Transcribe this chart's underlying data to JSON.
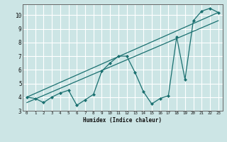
{
  "title": "",
  "xlabel": "Humidex (Indice chaleur)",
  "ylabel": "",
  "bg_color": "#cce5e5",
  "grid_color": "#ffffff",
  "line_color": "#1a7070",
  "xlim": [
    -0.5,
    23.5
  ],
  "ylim": [
    3.0,
    10.8
  ],
  "xticks": [
    0,
    1,
    2,
    3,
    4,
    5,
    6,
    7,
    8,
    9,
    10,
    11,
    12,
    13,
    14,
    15,
    16,
    17,
    18,
    19,
    20,
    21,
    22,
    23
  ],
  "yticks": [
    3,
    4,
    5,
    6,
    7,
    8,
    9,
    10
  ],
  "data_x": [
    0,
    1,
    2,
    3,
    4,
    5,
    6,
    7,
    8,
    9,
    10,
    11,
    12,
    13,
    14,
    15,
    16,
    17,
    18,
    19,
    20,
    21,
    22,
    23
  ],
  "data_y": [
    4.0,
    3.9,
    3.6,
    4.0,
    4.3,
    4.5,
    3.4,
    3.8,
    4.2,
    5.9,
    6.5,
    7.0,
    7.0,
    5.8,
    4.4,
    3.5,
    3.9,
    4.1,
    8.4,
    5.3,
    9.6,
    10.3,
    10.5,
    10.2
  ],
  "line1_x": [
    0,
    23
  ],
  "line1_y": [
    4.0,
    10.2
  ],
  "line2_x": [
    0,
    23
  ],
  "line2_y": [
    3.6,
    9.6
  ]
}
